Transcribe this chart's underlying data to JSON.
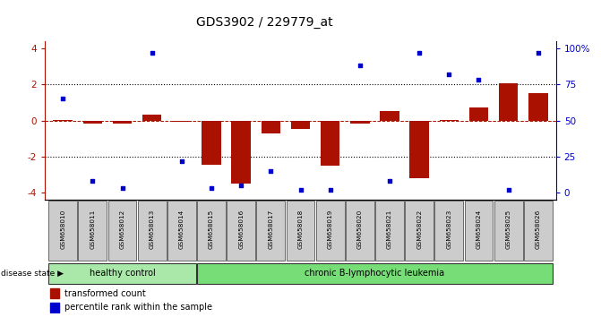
{
  "title": "GDS3902 / 229779_at",
  "samples": [
    "GSM658010",
    "GSM658011",
    "GSM658012",
    "GSM658013",
    "GSM658014",
    "GSM658015",
    "GSM658016",
    "GSM658017",
    "GSM658018",
    "GSM658019",
    "GSM658020",
    "GSM658021",
    "GSM658022",
    "GSM658023",
    "GSM658024",
    "GSM658025",
    "GSM658026"
  ],
  "red_values": [
    0.02,
    -0.15,
    -0.15,
    0.3,
    -0.05,
    -2.45,
    -3.5,
    -0.7,
    -0.45,
    -2.5,
    -0.18,
    0.5,
    -3.2,
    0.02,
    0.7,
    2.05,
    1.5
  ],
  "blue_pct": [
    65,
    8,
    3,
    97,
    22,
    3,
    5,
    15,
    2,
    2,
    88,
    8,
    97,
    82,
    78,
    2,
    97
  ],
  "group_labels": [
    "healthy control",
    "chronic B-lymphocytic leukemia"
  ],
  "healthy_count": 5,
  "total_count": 17,
  "bar_color": "#aa1100",
  "dot_color": "#0000cc",
  "left_yticks": [
    -4,
    -2,
    0,
    2,
    4
  ],
  "right_yticklabels": [
    "0",
    "25",
    "50",
    "75",
    "100%"
  ],
  "ylim": [
    -4.4,
    4.4
  ],
  "background_color": "#ffffff",
  "dashed_line_y": [
    2.0,
    -2.0
  ],
  "red_line_y": 0.0,
  "legend_red": "transformed count",
  "legend_blue": "percentile rank within the sample",
  "disease_state_label": "disease state"
}
